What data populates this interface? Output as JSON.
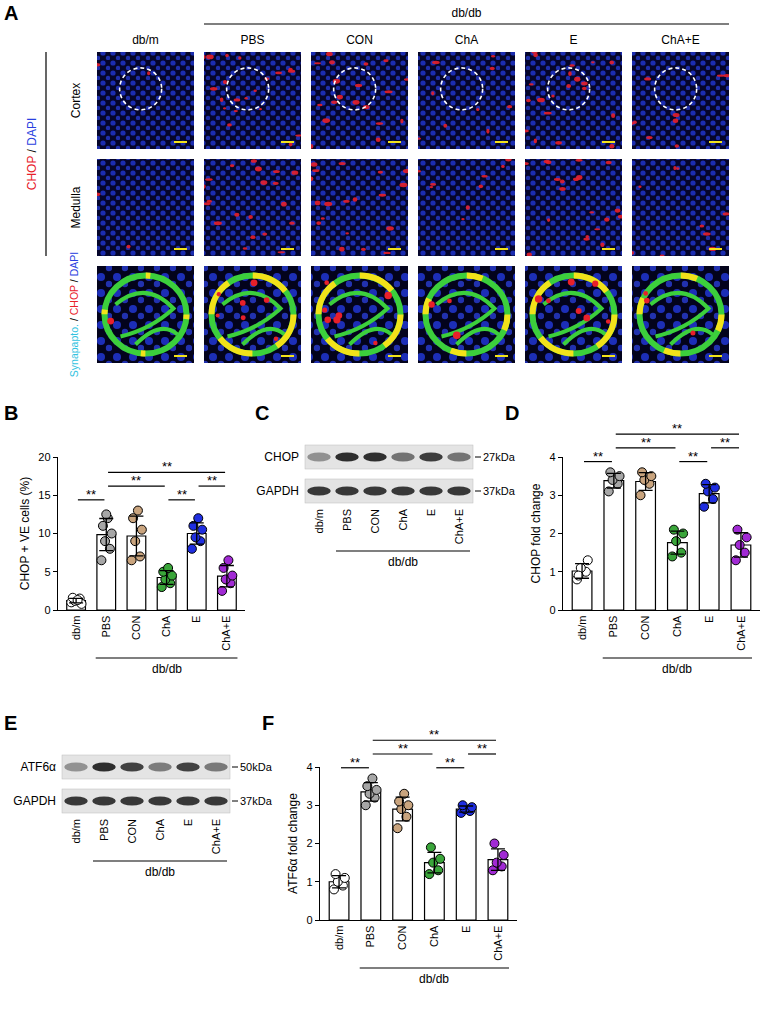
{
  "panel_labels": [
    "A",
    "B",
    "C",
    "D",
    "E",
    "F"
  ],
  "image_panel": {
    "columns": [
      "db/m",
      "PBS",
      "CON",
      "ChA",
      "E",
      "ChA+E"
    ],
    "group": {
      "text": "db/db",
      "columns": [
        "PBS",
        "CON",
        "ChA",
        "E",
        "ChA+E"
      ]
    },
    "stain": [
      {
        "text": "CHOP",
        "color": "#e8202a"
      },
      {
        "text": " / "
      },
      {
        "text": "DAPI",
        "color": "#2a3fe0"
      }
    ],
    "rows": [
      "Cortex",
      "Medulla"
    ],
    "co_stain": [
      {
        "text": "Synapapto.",
        "color": "#33c3e0"
      },
      {
        "text": " / "
      },
      {
        "text": "CHOP",
        "color": "#e8202a"
      },
      {
        "text": " / "
      },
      {
        "text": "DAPI",
        "color": "#2a3fe0"
      }
    ]
  },
  "blots": [
    {
      "lanes": [
        "db/m",
        "PBS",
        "CON",
        "ChA",
        "E",
        "ChA+E"
      ],
      "group": {
        "text": "db/db",
        "lanes": [
          "PBS",
          "CON",
          "ChA",
          "E",
          "ChA+E"
        ]
      },
      "bands": [
        {
          "name": "CHOP",
          "size": "27kDa"
        },
        {
          "name": "GAPDH",
          "size": "37kDa"
        }
      ]
    },
    {
      "lanes": [
        "db/m",
        "PBS",
        "CON",
        "ChA",
        "E",
        "ChA+E"
      ],
      "group": {
        "text": "db/db",
        "lanes": [
          "PBS",
          "CON",
          "ChA",
          "E",
          "ChA+E"
        ]
      },
      "bands": [
        {
          "name": "ATF6α",
          "size": "50kDa"
        },
        {
          "name": "GAPDH",
          "size": "37kDa"
        }
      ]
    }
  ],
  "chart_data": [
    {
      "type": "bar",
      "y_label": "CHOP + VE cells (%)",
      "categories": [
        "db/m",
        "PBS",
        "CON",
        "ChA",
        "E",
        "ChA+E"
      ],
      "values": [
        1.23,
        9.86,
        9.67,
        4.25,
        10.0,
        4.42
      ],
      "error": [
        0.3,
        2.1,
        2.6,
        0.9,
        1.4,
        1.4
      ],
      "points": [
        [
          1.0,
          1.5,
          1.2,
          0.8,
          1.6,
          1.3
        ],
        [
          6.5,
          8,
          9,
          10,
          11,
          12,
          12.5
        ],
        [
          6.5,
          7,
          9,
          10.5,
          12,
          13
        ],
        [
          3,
          3.5,
          4,
          4.5,
          5,
          5.5
        ],
        [
          8,
          9,
          9.5,
          10.5,
          11,
          12
        ],
        [
          2.5,
          3.5,
          4,
          4.5,
          5.5,
          6.5
        ]
      ],
      "colors": [
        "#ffffff",
        "#a6a6a6",
        "#c9a47e",
        "#3aa53a",
        "#1f2ee0",
        "#a12ad4"
      ],
      "ylim": [
        0,
        20
      ],
      "yticks": [
        0,
        5,
        10,
        15,
        20
      ],
      "group_label": {
        "text": "db/db",
        "from": "PBS",
        "to": "ChA+E"
      },
      "comparisons": [
        {
          "pair": [
            "db/m",
            "PBS"
          ],
          "label": "**"
        },
        {
          "pair": [
            "ChA",
            "E"
          ],
          "label": "**"
        },
        {
          "pair": [
            "E",
            "ChA+E"
          ],
          "label": "**"
        },
        {
          "pair": [
            "PBS",
            "ChA"
          ],
          "label": "**"
        },
        {
          "pair": [
            "PBS",
            "ChA+E"
          ],
          "label": "**"
        }
      ]
    },
    {
      "type": "bar",
      "y_label": "CHOP fold change",
      "categories": [
        "db/m",
        "PBS",
        "CON",
        "ChA",
        "E",
        "ChA+E"
      ],
      "values": [
        1.02,
        3.38,
        3.36,
        1.76,
        3.04,
        1.7
      ],
      "error": [
        0.19,
        0.19,
        0.23,
        0.3,
        0.24,
        0.32
      ],
      "points": [
        [
          0.8,
          1.0,
          1.1,
          1.3,
          0.9
        ],
        [
          3.1,
          3.3,
          3.4,
          3.5,
          3.6
        ],
        [
          3.0,
          3.3,
          3.4,
          3.5,
          3.6
        ],
        [
          1.4,
          1.5,
          1.8,
          2.0,
          2.1
        ],
        [
          2.7,
          2.9,
          3.1,
          3.2,
          3.3
        ],
        [
          1.3,
          1.5,
          1.7,
          1.9,
          2.1
        ]
      ],
      "colors": [
        "#ffffff",
        "#a6a6a6",
        "#c9a47e",
        "#3aa53a",
        "#1f2ee0",
        "#a12ad4"
      ],
      "ylim": [
        0,
        4
      ],
      "yticks": [
        0,
        1,
        2,
        3,
        4
      ],
      "group_label": {
        "text": "db/db",
        "from": "PBS",
        "to": "ChA+E"
      },
      "comparisons": [
        {
          "pair": [
            "db/m",
            "PBS"
          ],
          "label": "**"
        },
        {
          "pair": [
            "ChA",
            "E"
          ],
          "label": "**"
        },
        {
          "pair": [
            "E",
            "ChA+E"
          ],
          "label": "**"
        },
        {
          "pair": [
            "PBS",
            "ChA"
          ],
          "label": "**"
        },
        {
          "pair": [
            "PBS",
            "ChA+E"
          ],
          "label": "**"
        }
      ]
    },
    {
      "type": "bar",
      "y_label": "ATF6α fold change",
      "categories": [
        "db/m",
        "PBS",
        "CON",
        "ChA",
        "E",
        "ChA+E"
      ],
      "values": [
        1.0,
        3.35,
        2.9,
        1.5,
        2.9,
        1.58
      ],
      "error": [
        0.16,
        0.24,
        0.31,
        0.27,
        0.08,
        0.28
      ],
      "points": [
        [
          0.8,
          0.9,
          1.0,
          1.1,
          1.2
        ],
        [
          3.0,
          3.2,
          3.3,
          3.4,
          3.5,
          3.7
        ],
        [
          2.4,
          2.7,
          2.9,
          3.0,
          3.1,
          3.3
        ],
        [
          1.2,
          1.3,
          1.5,
          1.6,
          1.9
        ],
        [
          2.8,
          2.85,
          2.9,
          2.95,
          3.0
        ],
        [
          1.3,
          1.4,
          1.5,
          1.7,
          2.0
        ]
      ],
      "colors": [
        "#ffffff",
        "#a6a6a6",
        "#c9a47e",
        "#3aa53a",
        "#1f2ee0",
        "#a12ad4"
      ],
      "ylim": [
        0,
        4
      ],
      "yticks": [
        0,
        1,
        2,
        3,
        4
      ],
      "group_label": {
        "text": "db/db",
        "from": "PBS",
        "to": "ChA+E"
      },
      "comparisons": [
        {
          "pair": [
            "db/m",
            "PBS"
          ],
          "label": "**"
        },
        {
          "pair": [
            "ChA",
            "E"
          ],
          "label": "**"
        },
        {
          "pair": [
            "E",
            "ChA+E"
          ],
          "label": "**"
        },
        {
          "pair": [
            "PBS",
            "ChA"
          ],
          "label": "**"
        },
        {
          "pair": [
            "PBS",
            "ChA+E"
          ],
          "label": "**"
        }
      ]
    }
  ]
}
